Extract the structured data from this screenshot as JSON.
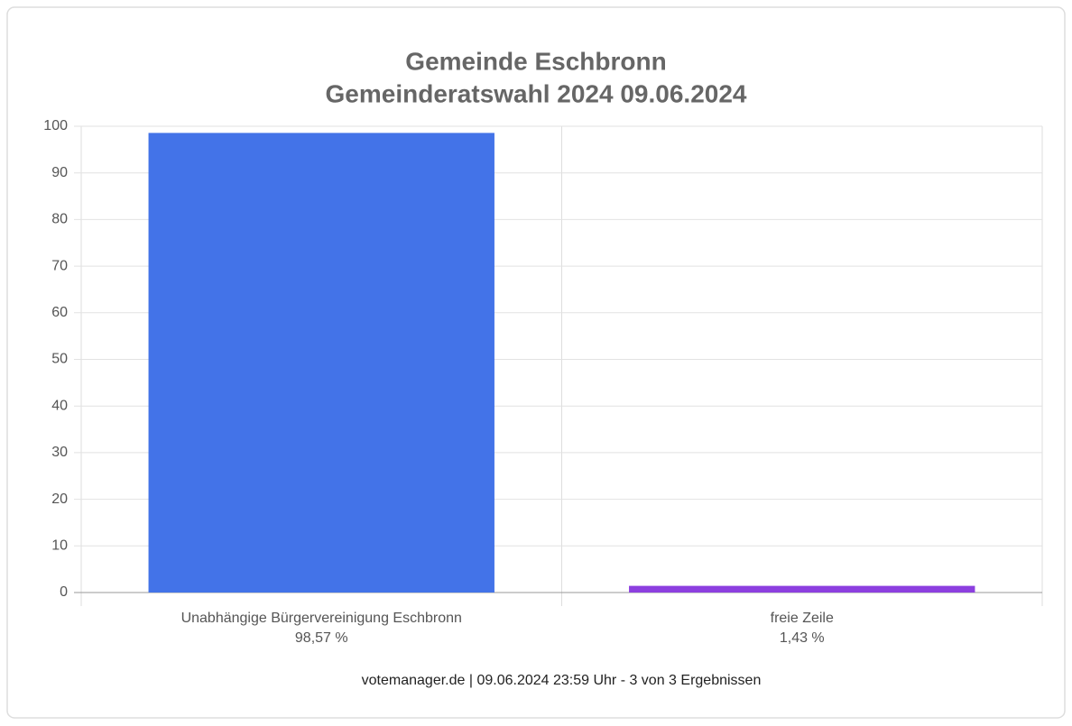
{
  "chart_data": {
    "type": "bar",
    "title": "Gemeinde Eschbronn",
    "subtitle": "Gemeinderatswahl 2024 09.06.2024",
    "categories": [
      "Unabhängige Bürgervereinigung Eschbronn",
      "freie Zeile"
    ],
    "values": [
      98.57,
      1.43
    ],
    "value_labels": [
      "98,57 %",
      "1,43 %"
    ],
    "colors": [
      "#4373e8",
      "#8c3fdf"
    ],
    "ylim": [
      0,
      100
    ],
    "yticks": [
      0,
      10,
      20,
      30,
      40,
      50,
      60,
      70,
      80,
      90,
      100
    ],
    "grid": true,
    "source": "votemanager.de | 09.06.2024 23:59 Uhr - 3 von 3 Ergebnissen"
  }
}
